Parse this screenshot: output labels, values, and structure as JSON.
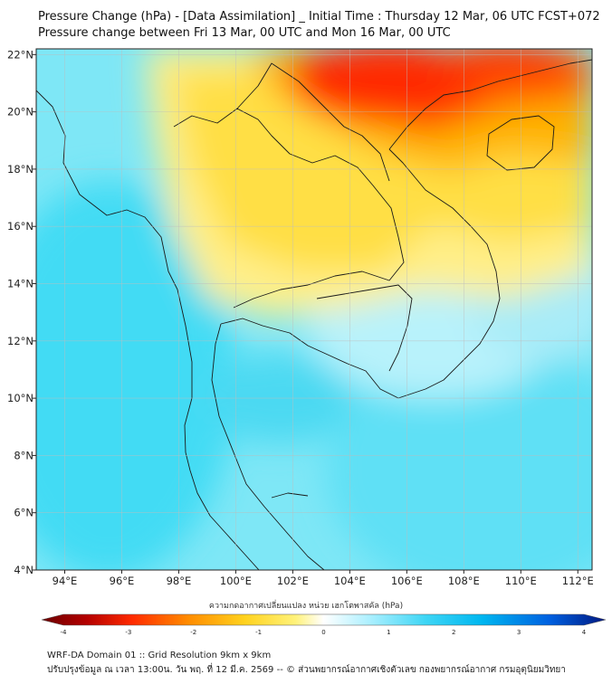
{
  "title_line1": "Pressure Change (hPa) - [Data Assimilation] _ Initial Time : Thursday 12 Mar, 06 UTC FCST+072",
  "title_line2": "Pressure change between Fri 13 Mar, 00 UTC and Mon 16 Mar, 00 UTC",
  "map": {
    "lon_range": [
      93,
      112.5
    ],
    "lat_range": [
      4,
      22.2
    ],
    "lon_ticks": [
      94,
      96,
      98,
      100,
      102,
      104,
      106,
      108,
      110,
      112
    ],
    "lon_tick_labels": [
      "94°E",
      "96°E",
      "98°E",
      "100°E",
      "102°E",
      "104°E",
      "106°E",
      "108°E",
      "110°E",
      "112°E"
    ],
    "lat_ticks": [
      4,
      6,
      8,
      10,
      12,
      14,
      16,
      18,
      20,
      22
    ],
    "lat_tick_labels": [
      "4°N",
      "6°N",
      "8°N",
      "10°N",
      "12°N",
      "14°N",
      "16°N",
      "18°N",
      "20°N",
      "22°N"
    ],
    "grid": true
  },
  "colorbar": {
    "title": "ความกดอากาศเปลี่ยนแปลง หน่วย เฮกโตพาสคัล (hPa)",
    "range": [
      -4,
      4
    ],
    "ticks": [
      -4,
      -3,
      -2,
      -1,
      0,
      1,
      2,
      3,
      4
    ],
    "tick_labels": [
      "-4",
      "-3",
      "-2",
      "-1",
      "0",
      "1",
      "2",
      "3",
      "4"
    ],
    "colors": [
      "#6b0000",
      "#c80000",
      "#ff2a00",
      "#ff8c00",
      "#ffd21e",
      "#fff27a",
      "#ffffff",
      "#aef0ff",
      "#3fd6f5",
      "#00b7f0",
      "#0060e0",
      "#001880"
    ]
  },
  "footer_line1": "WRF-DA Domain 01 :: Grid Resolution 9km x 9km",
  "footer_line2": "ปรับปรุงข้อมูล ณ เวลา 13:00น. วัน พฤ. ที่ 12 มี.ค. 2569 -- © ส่วนพยากรณ์อากาศเชิงตัวเลข กองพยากรณ์อากาศ กรมอุตุนิยมวิทยา"
}
